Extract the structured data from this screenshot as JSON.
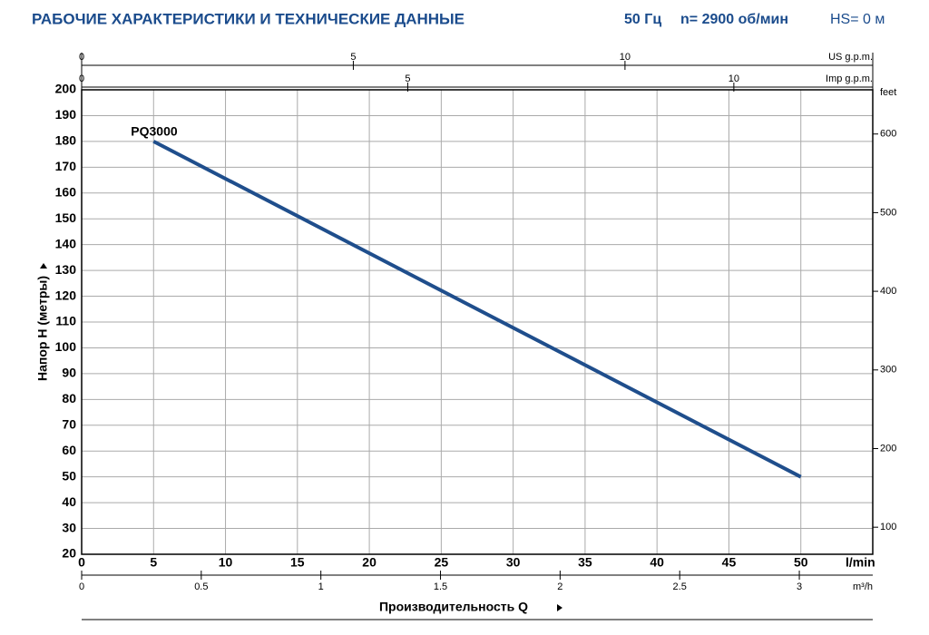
{
  "chart_data": {
    "type": "line",
    "title": "РАБОЧИЕ ХАРАКТЕРИСТИКИ И ТЕХНИЧЕСКИЕ ДАННЫЕ",
    "frequency": "50 Гц",
    "speed": "n= 2900 об/мин",
    "suction": "HS= 0 м",
    "xlabel": "Производительность Q",
    "x_unit": "l/min",
    "ylabel": "Напор H (метры)",
    "xlim": [
      0,
      55
    ],
    "xticks": [
      0,
      5,
      10,
      15,
      20,
      25,
      30,
      35,
      40,
      45,
      50
    ],
    "ylim": [
      20,
      200
    ],
    "yticks": [
      20,
      30,
      40,
      50,
      60,
      70,
      80,
      90,
      100,
      110,
      120,
      130,
      140,
      150,
      160,
      170,
      180,
      190,
      200
    ],
    "grid": true,
    "series": [
      {
        "name": "PQ3000",
        "color": "#1f4e8c",
        "x": [
          5,
          50
        ],
        "values": [
          180,
          50
        ]
      }
    ],
    "secondary_axes": [
      {
        "position": "top",
        "label": "US g.p.m.",
        "lim": [
          0,
          14.56
        ],
        "ticks": [
          0,
          5,
          10
        ]
      },
      {
        "position": "top-inner",
        "label": "Imp g.p.m.",
        "lim": [
          0,
          12.13
        ],
        "ticks": [
          0,
          5,
          10
        ]
      },
      {
        "position": "bottom",
        "label": "m³/h",
        "lim": [
          0,
          3.307
        ],
        "ticks": [
          0,
          0.5,
          1,
          1.5,
          2,
          2.5,
          3
        ]
      },
      {
        "position": "right",
        "label": "feet",
        "lim": [
          65.6,
          656.2
        ],
        "ticks": [
          100,
          200,
          300,
          400,
          500,
          600
        ]
      }
    ]
  }
}
